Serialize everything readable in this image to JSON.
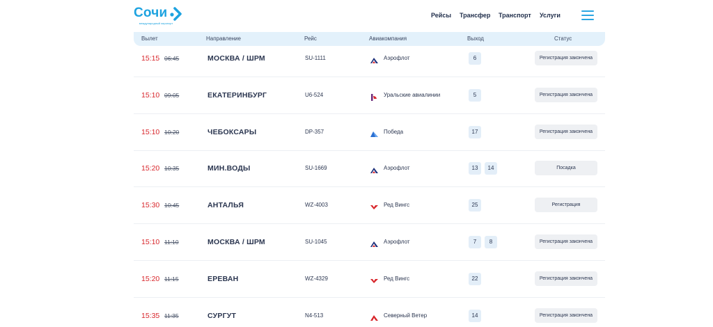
{
  "header": {
    "logo_text": "Сочи",
    "logo_subtitle": "международный аэропорт",
    "nav": [
      "Рейсы",
      "Трансфер",
      "Транспорт",
      "Услуги"
    ],
    "menu_icon": "hamburger-icon"
  },
  "table": {
    "columns": [
      "Вылет",
      "Направление",
      "Рейс",
      "Авиакомпания",
      "Выход",
      "Статус"
    ],
    "rows": [
      {
        "time_new": "15:15",
        "time_old": "06:45",
        "destination": "МОСКВА / ШРМ",
        "flight": "SU-1111",
        "airline": "Аэрофлот",
        "airline_icon": "aeroflot-logo-icon",
        "gates": [
          "6"
        ],
        "status": "Регистрация закончена"
      },
      {
        "time_new": "15:10",
        "time_old": "09:05",
        "destination": "ЕКАТЕРИНБУРГ",
        "flight": "U6-524",
        "airline": "Уральские авиалинии",
        "airline_icon": "ural-airlines-logo-icon",
        "gates": [
          "5"
        ],
        "status": "Регистрация закончена"
      },
      {
        "time_new": "15:10",
        "time_old": "10:20",
        "destination": "ЧЕБОКСАРЫ",
        "flight": "DP-357",
        "airline": "Победа",
        "airline_icon": "pobeda-logo-icon",
        "gates": [
          "17"
        ],
        "status": "Регистрация закончена"
      },
      {
        "time_new": "15:20",
        "time_old": "10:35",
        "destination": "МИН.ВОДЫ",
        "flight": "SU-1669",
        "airline": "Аэрофлот",
        "airline_icon": "aeroflot-logo-icon",
        "gates": [
          "13",
          "14"
        ],
        "status": "Посадка"
      },
      {
        "time_new": "15:30",
        "time_old": "10:45",
        "destination": "АНТАЛЬЯ",
        "flight": "WZ-4003",
        "airline": "Ред Вингс",
        "airline_icon": "red-wings-logo-icon",
        "gates": [
          "25"
        ],
        "status": "Регистрация"
      },
      {
        "time_new": "15:10",
        "time_old": "11:10",
        "destination": "МОСКВА / ШРМ",
        "flight": "SU-1045",
        "airline": "Аэрофлот",
        "airline_icon": "aeroflot-logo-icon",
        "gates": [
          "7",
          "8"
        ],
        "status": "Регистрация закончена"
      },
      {
        "time_new": "15:20",
        "time_old": "11:15",
        "destination": "ЕРЕВАН",
        "flight": "WZ-4329",
        "airline": "Ред Вингс",
        "airline_icon": "red-wings-logo-icon",
        "gates": [
          "22"
        ],
        "status": "Регистрация закончена"
      },
      {
        "time_new": "15:35",
        "time_old": "11:35",
        "destination": "СУРГУТ",
        "flight": "N4-513",
        "airline": "Северный Ветер",
        "airline_icon": "nordwind-logo-icon",
        "gates": [
          "14"
        ],
        "status": "Регистрация закончена"
      }
    ]
  },
  "colors": {
    "brand": "#1ea3e0",
    "delayed_time": "#d8262b",
    "header_bg": "#e3f1fb"
  }
}
